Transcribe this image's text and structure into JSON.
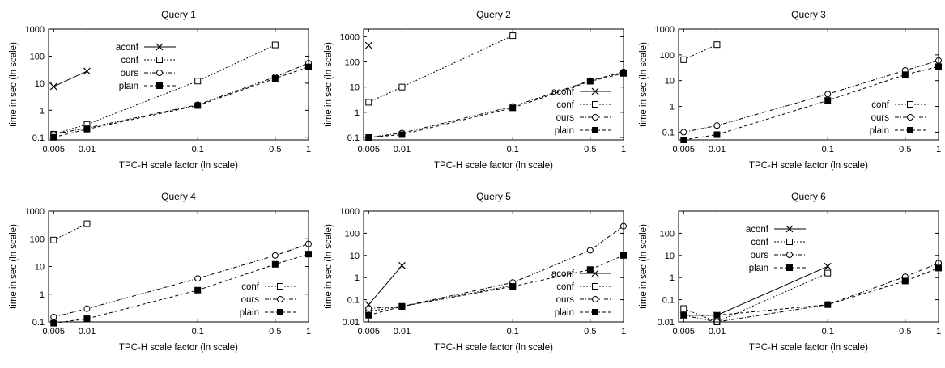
{
  "chart_data": [
    {
      "type": "line",
      "title": "Query 1",
      "xlabel": "TPC-H scale factor (ln scale)",
      "ylabel": "time in sec (ln scale)",
      "x_scale": "log",
      "y_scale": "log",
      "xlim": [
        0.0045,
        1.0
      ],
      "ylim": [
        0.08,
        1000
      ],
      "x_ticks": [
        "0.005",
        "0.01",
        "0.1",
        "0.5",
        "1"
      ],
      "y_ticks": [
        "0.1",
        "1",
        "10",
        "100",
        "1000"
      ],
      "legend_position": "top-left",
      "series": [
        {
          "name": "aconf",
          "x": [
            0.005,
            0.01
          ],
          "y": [
            7.5,
            28
          ]
        },
        {
          "name": "conf",
          "x": [
            0.005,
            0.01,
            0.1,
            0.5,
            1
          ],
          "y": [
            0.13,
            0.3,
            12,
            260,
            null
          ]
        },
        {
          "name": "ours",
          "x": [
            0.005,
            0.01,
            0.1,
            0.5,
            1
          ],
          "y": [
            0.13,
            0.22,
            1.6,
            17,
            55
          ]
        },
        {
          "name": "plain",
          "x": [
            0.005,
            0.01,
            0.1,
            0.5,
            1
          ],
          "y": [
            0.1,
            0.2,
            1.5,
            15,
            40
          ]
        }
      ]
    },
    {
      "type": "line",
      "title": "Query 2",
      "xlabel": "TPC-H scale factor (ln scale)",
      "ylabel": "time in sec (ln scale)",
      "x_scale": "log",
      "y_scale": "log",
      "xlim": [
        0.0045,
        1.0
      ],
      "ylim": [
        0.08,
        2000
      ],
      "x_ticks": [
        "0.005",
        "0.01",
        "0.1",
        "0.5",
        "1"
      ],
      "y_ticks": [
        "0.1",
        "1",
        "10",
        "100",
        "1000"
      ],
      "legend_position": "bottom-right",
      "series": [
        {
          "name": "aconf",
          "x": [
            0.005
          ],
          "y": [
            450
          ]
        },
        {
          "name": "conf",
          "x": [
            0.005,
            0.01,
            0.1
          ],
          "y": [
            2.5,
            10,
            1100
          ]
        },
        {
          "name": "ours",
          "x": [
            0.005,
            0.01,
            0.1,
            0.5,
            1
          ],
          "y": [
            0.1,
            0.15,
            1.7,
            18,
            40
          ]
        },
        {
          "name": "plain",
          "x": [
            0.005,
            0.01,
            0.1,
            0.5,
            1
          ],
          "y": [
            0.1,
            0.13,
            1.5,
            17,
            35
          ]
        }
      ]
    },
    {
      "type": "line",
      "title": "Query 3",
      "xlabel": "TPC-H scale factor (ln scale)",
      "ylabel": "time in sec (ln scale)",
      "x_scale": "log",
      "y_scale": "log",
      "xlim": [
        0.0045,
        1.0
      ],
      "ylim": [
        0.05,
        1000
      ],
      "x_ticks": [
        "0.005",
        "0.01",
        "0.1",
        "0.5",
        "1"
      ],
      "y_ticks": [
        "0.1",
        "1",
        "10",
        "100",
        "1000"
      ],
      "legend_position": "bottom-right",
      "series": [
        {
          "name": "conf",
          "x": [
            0.005,
            0.01
          ],
          "y": [
            65,
            250
          ]
        },
        {
          "name": "ours",
          "x": [
            0.005,
            0.01,
            0.1,
            0.5,
            1
          ],
          "y": [
            0.1,
            0.18,
            3,
            25,
            60
          ]
        },
        {
          "name": "plain",
          "x": [
            0.005,
            0.01,
            0.1,
            0.5,
            1
          ],
          "y": [
            0.05,
            0.08,
            1.7,
            17,
            35
          ]
        }
      ]
    },
    {
      "type": "line",
      "title": "Query 4",
      "xlabel": "TPC-H scale factor (ln scale)",
      "ylabel": "time in sec (ln scale)",
      "x_scale": "log",
      "y_scale": "log",
      "xlim": [
        0.0045,
        1.0
      ],
      "ylim": [
        0.1,
        1000
      ],
      "x_ticks": [
        "0.005",
        "0.01",
        "0.1",
        "0.5",
        "1"
      ],
      "y_ticks": [
        "0.1",
        "1",
        "10",
        "100",
        "1000"
      ],
      "legend_position": "bottom-right",
      "series": [
        {
          "name": "conf",
          "x": [
            0.005,
            0.01
          ],
          "y": [
            90,
            350
          ]
        },
        {
          "name": "ours",
          "x": [
            0.005,
            0.01,
            0.1,
            0.5,
            1
          ],
          "y": [
            0.15,
            0.3,
            3.7,
            25,
            65
          ]
        },
        {
          "name": "plain",
          "x": [
            0.005,
            0.01,
            0.1,
            0.5,
            1
          ],
          "y": [
            0.09,
            0.13,
            1.4,
            12,
            28
          ]
        }
      ]
    },
    {
      "type": "line",
      "title": "Query 5",
      "xlabel": "TPC-H scale factor (ln scale)",
      "ylabel": "time in sec (ln scale)",
      "x_scale": "log",
      "y_scale": "log",
      "xlim": [
        0.0045,
        1.0
      ],
      "ylim": [
        0.01,
        1000
      ],
      "x_ticks": [
        "0.005",
        "0.01",
        "0.1",
        "0.5",
        "1"
      ],
      "y_ticks": [
        "0.01",
        "0.1",
        "1",
        "10",
        "100",
        "1000"
      ],
      "legend_position": "bottom-right",
      "series": [
        {
          "name": "aconf",
          "x": [
            0.005,
            0.01
          ],
          "y": [
            0.06,
            3.5
          ]
        },
        {
          "name": "conf",
          "x": [
            0.005,
            0.01,
            0.1
          ],
          "y": [
            0.03,
            0.05,
            0.45
          ]
        },
        {
          "name": "ours",
          "x": [
            0.005,
            0.01,
            0.1,
            0.5,
            1
          ],
          "y": [
            0.04,
            0.05,
            0.6,
            17,
            210
          ]
        },
        {
          "name": "plain",
          "x": [
            0.005,
            0.01,
            0.1,
            0.5,
            1
          ],
          "y": [
            0.02,
            0.05,
            0.4,
            2.3,
            10
          ]
        }
      ]
    },
    {
      "type": "line",
      "title": "Query 6",
      "xlabel": "TPC-H scale factor (ln scale)",
      "ylabel": "time in sec (ln scale)",
      "x_scale": "log",
      "y_scale": "log",
      "xlim": [
        0.0045,
        1.0
      ],
      "ylim": [
        0.01,
        1000
      ],
      "x_ticks": [
        "0.005",
        "0.01",
        "0.1",
        "0.5",
        "1"
      ],
      "y_ticks": [
        "0.01",
        "0.1",
        "1",
        "10",
        "100"
      ],
      "legend_position": "top-left",
      "series": [
        {
          "name": "aconf",
          "x": [
            0.005,
            0.01,
            0.1
          ],
          "y": [
            0.02,
            0.02,
            3.2
          ]
        },
        {
          "name": "conf",
          "x": [
            0.005,
            0.01,
            0.1
          ],
          "y": [
            0.04,
            0.01,
            1.6
          ]
        },
        {
          "name": "ours",
          "x": [
            0.005,
            0.01,
            0.1,
            0.5,
            1
          ],
          "y": [
            0.02,
            0.01,
            0.06,
            1.1,
            4.5
          ]
        },
        {
          "name": "plain",
          "x": [
            0.005,
            0.01,
            0.1,
            0.5,
            1
          ],
          "y": [
            0.02,
            0.02,
            0.06,
            0.7,
            2.7
          ]
        }
      ]
    }
  ]
}
